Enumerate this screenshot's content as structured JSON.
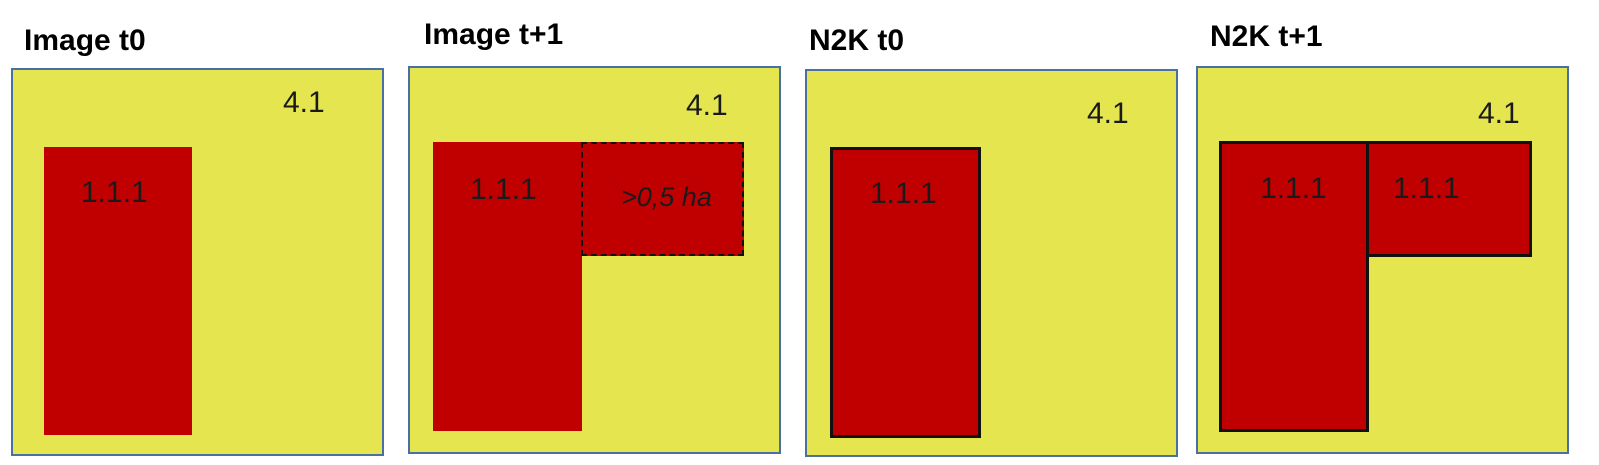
{
  "titles": {
    "image_t0": "Image t0",
    "image_t1": "Image t+1",
    "n2k_t0": "N2K t0",
    "n2k_t1": "N2K t+1"
  },
  "background_class": "4.1",
  "patch_class": "1.1.1",
  "change_note": ">0,5 ha",
  "colors": {
    "background_class": "#e5e64f",
    "patch_class": "#c00000",
    "panel_border": "#4a6fa3"
  }
}
